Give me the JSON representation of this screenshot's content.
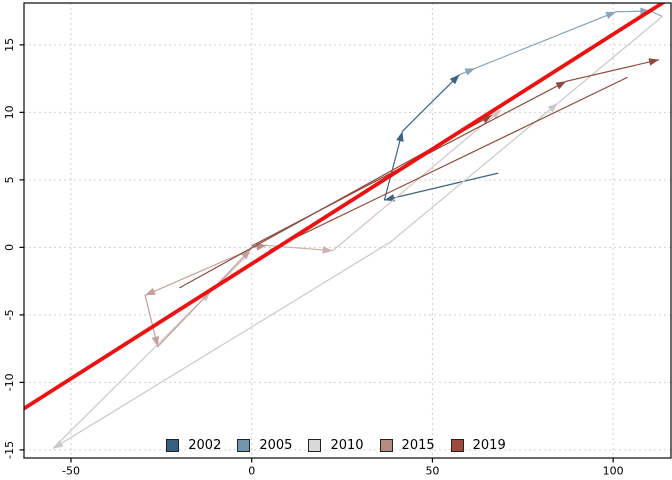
{
  "chart_data": {
    "type": "scatter",
    "subtype": "connected-arrow-phase-plot",
    "title": "",
    "xlabel": "",
    "ylabel": "",
    "xlim": [
      -63,
      116
    ],
    "ylim": [
      -15.6,
      18.1
    ],
    "x_ticks": [
      -50,
      0,
      50,
      100
    ],
    "y_ticks": [
      -15,
      -10,
      -5,
      0,
      5,
      10,
      15
    ],
    "grid": true,
    "grid_style": "dotted",
    "grid_color": "#cfcfcf",
    "box_color": "#1a1a1a",
    "fit_line": {
      "name": "fit-line",
      "color": "#ee1111",
      "width": 3.8,
      "from": [
        -64,
        -12.1
      ],
      "to": [
        115.4,
        18.4
      ]
    },
    "legend_position": "bottom-center",
    "legend": [
      {
        "label": "2002",
        "color": "#35617f"
      },
      {
        "label": "2005",
        "color": "#7396ae"
      },
      {
        "label": "2010",
        "color": "#d9d9d9"
      },
      {
        "label": "2015",
        "color": "#b48c82"
      },
      {
        "label": "2019",
        "color": "#9c4a3a"
      }
    ],
    "series": [
      {
        "year": "2002",
        "color": "#3a6484",
        "strokes": [
          {
            "pts": [
              [
                68.2,
                5.5
              ],
              [
                36.7,
                3.5
              ]
            ],
            "arrows": [
              [
                0,
                1
              ]
            ]
          },
          {
            "pts": [
              [
                36.7,
                3.5
              ],
              [
                41.7,
                8.6
              ]
            ],
            "arrows": [
              [
                0,
                1
              ]
            ]
          },
          {
            "pts": [
              [
                41.7,
                8.6
              ],
              [
                57.5,
                12.8
              ]
            ],
            "arrows": [
              [
                0,
                1
              ]
            ]
          }
        ]
      },
      {
        "year": "2005",
        "color": "#8aa5bc",
        "strokes": [
          {
            "pts": [
              [
                57.5,
                12.8
              ],
              [
                100.8,
                17.45
              ],
              [
                110.3,
                17.5
              ],
              [
                113.6,
                17.1
              ]
            ],
            "arrows": [
              [
                0,
                0.1
              ],
              [
                0,
                1
              ],
              [
                1,
                1
              ]
            ]
          }
        ]
      },
      {
        "year": "2010",
        "color": "#c9c9c9",
        "strokes": [
          {
            "pts": [
              [
                37.8,
                0.3
              ],
              [
                -55,
                -14.9
              ],
              [
                -0.5,
                -0.4
              ]
            ],
            "arrows": [
              [
                0,
                1
              ],
              [
                1,
                0.8
              ]
            ]
          },
          {
            "pts": [
              [
                37.5,
                0.2
              ],
              [
                113.6,
                17.1
              ]
            ],
            "arrows": [
              [
                0,
                0.62
              ]
            ]
          }
        ]
      },
      {
        "year": "2015",
        "color": "#c3a09a",
        "strokes": [
          {
            "pts": [
              [
                -0.3,
                -0.15
              ],
              [
                -29.5,
                -3.55
              ],
              [
                -26,
                -7.35
              ],
              [
                -0.3,
                -0.15
              ]
            ],
            "arrows": [
              [
                0,
                1
              ],
              [
                1,
                1
              ],
              [
                2,
                1
              ]
            ]
          },
          {
            "pts": [
              [
                -0.1,
                0
              ],
              [
                4.1,
                0.15
              ]
            ],
            "arrows": [
              [
                0,
                1
              ]
            ],
            "color": "#b98f88"
          },
          {
            "pts": [
              [
                4.1,
                0.15
              ],
              [
                22.4,
                -0.25
              ]
            ],
            "arrows": [
              [
                0,
                1
              ]
            ],
            "color": "#cdb3af"
          },
          {
            "pts": [
              [
                22.4,
                -0.25
              ],
              [
                69,
                10.2
              ]
            ],
            "arrows": [
              [
                0,
                1
              ]
            ],
            "color": "#d8c3c0"
          }
        ]
      },
      {
        "year": "2019",
        "color": "#8f4a3d",
        "strokes": [
          {
            "pts": [
              [
                -20,
                -3
              ],
              [
                66.5,
                9.8
              ]
            ],
            "arrows": [
              [
                0,
                1
              ]
            ]
          },
          {
            "pts": [
              [
                0,
                0.1
              ],
              [
                87,
                12.3
              ],
              [
                112.7,
                13.9
              ]
            ],
            "arrows": [
              [
                0,
                1
              ],
              [
                1,
                1
              ]
            ]
          },
          {
            "pts": [
              [
                5,
                -0.2
              ],
              [
                104,
                12.6
              ]
            ],
            "arrows": []
          }
        ]
      }
    ]
  }
}
